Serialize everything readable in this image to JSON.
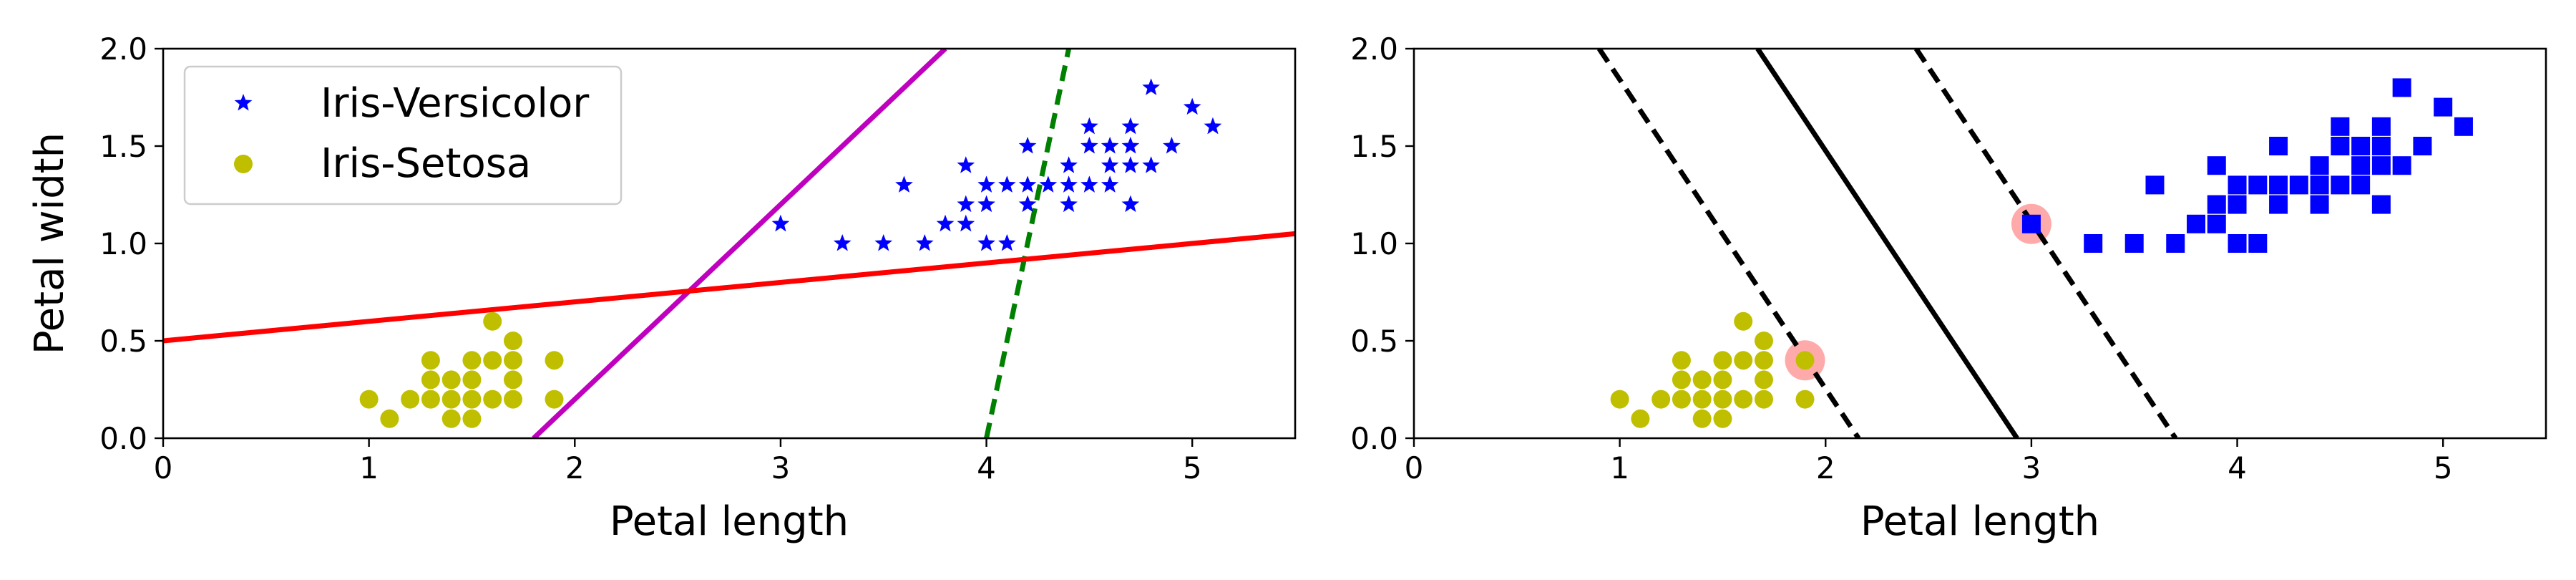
{
  "chart_data": [
    {
      "type": "scatter",
      "panel": "left",
      "title": "",
      "xlabel": "",
      "ylabel": "Petal width",
      "xlim": [
        0,
        5.5
      ],
      "ylim": [
        0,
        2.0
      ],
      "xticks": [
        "0",
        "1",
        "2",
        "3",
        "4",
        "5"
      ],
      "yticks": [
        "0.0",
        "0.5",
        "1.0",
        "1.5",
        "2.0"
      ],
      "grid": false,
      "legend_position": "top-left",
      "series": [
        {
          "name": "Iris-Versicolor",
          "marker": "star",
          "color": "#0000ff",
          "points": [
            [
              3.0,
              1.1
            ],
            [
              3.3,
              1.0
            ],
            [
              3.5,
              1.0
            ],
            [
              3.6,
              1.3
            ],
            [
              3.7,
              1.0
            ],
            [
              3.8,
              1.1
            ],
            [
              3.9,
              1.1
            ],
            [
              3.9,
              1.2
            ],
            [
              3.9,
              1.4
            ],
            [
              4.0,
              1.0
            ],
            [
              4.0,
              1.2
            ],
            [
              4.0,
              1.3
            ],
            [
              4.1,
              1.0
            ],
            [
              4.1,
              1.3
            ],
            [
              4.2,
              1.2
            ],
            [
              4.2,
              1.3
            ],
            [
              4.2,
              1.5
            ],
            [
              4.3,
              1.3
            ],
            [
              4.4,
              1.2
            ],
            [
              4.4,
              1.3
            ],
            [
              4.4,
              1.4
            ],
            [
              4.5,
              1.3
            ],
            [
              4.5,
              1.5
            ],
            [
              4.5,
              1.6
            ],
            [
              4.6,
              1.3
            ],
            [
              4.6,
              1.4
            ],
            [
              4.6,
              1.5
            ],
            [
              4.7,
              1.2
            ],
            [
              4.7,
              1.4
            ],
            [
              4.7,
              1.5
            ],
            [
              4.7,
              1.6
            ],
            [
              4.8,
              1.4
            ],
            [
              4.8,
              1.8
            ],
            [
              4.9,
              1.5
            ],
            [
              5.0,
              1.7
            ],
            [
              5.1,
              1.6
            ]
          ]
        },
        {
          "name": "Iris-Setosa",
          "marker": "circle",
          "color": "#bfbf00",
          "points": [
            [
              1.0,
              0.2
            ],
            [
              1.1,
              0.1
            ],
            [
              1.2,
              0.2
            ],
            [
              1.3,
              0.2
            ],
            [
              1.3,
              0.3
            ],
            [
              1.3,
              0.4
            ],
            [
              1.4,
              0.1
            ],
            [
              1.4,
              0.2
            ],
            [
              1.4,
              0.3
            ],
            [
              1.5,
              0.1
            ],
            [
              1.5,
              0.2
            ],
            [
              1.5,
              0.3
            ],
            [
              1.5,
              0.4
            ],
            [
              1.6,
              0.2
            ],
            [
              1.6,
              0.4
            ],
            [
              1.6,
              0.6
            ],
            [
              1.7,
              0.2
            ],
            [
              1.7,
              0.3
            ],
            [
              1.7,
              0.4
            ],
            [
              1.7,
              0.5
            ],
            [
              1.9,
              0.2
            ],
            [
              1.9,
              0.4
            ]
          ]
        }
      ],
      "lines": [
        {
          "style": "dashed",
          "color": "#008000",
          "x": [
            4.0,
            4.4
          ],
          "y": [
            0.0,
            2.0
          ]
        },
        {
          "style": "solid",
          "color": "#bf00bf",
          "x": [
            1.8,
            3.8
          ],
          "y": [
            0.0,
            2.0
          ]
        },
        {
          "style": "solid",
          "color": "#ff0000",
          "x": [
            0.0,
            5.5
          ],
          "y": [
            0.5,
            1.05
          ]
        }
      ]
    },
    {
      "type": "scatter",
      "panel": "right",
      "title": "",
      "xlabel": "Petal length",
      "ylabel": "",
      "xlim": [
        0,
        5.5
      ],
      "ylim": [
        0,
        2.0
      ],
      "xticks": [
        "0",
        "1",
        "2",
        "3",
        "4",
        "5"
      ],
      "yticks": [
        "0.0",
        "0.5",
        "1.0",
        "1.5",
        "2.0"
      ],
      "grid": false,
      "series": [
        {
          "marker": "square",
          "color": "#0000ff",
          "points": [
            [
              3.0,
              1.1
            ],
            [
              3.3,
              1.0
            ],
            [
              3.5,
              1.0
            ],
            [
              3.6,
              1.3
            ],
            [
              3.7,
              1.0
            ],
            [
              3.8,
              1.1
            ],
            [
              3.9,
              1.1
            ],
            [
              3.9,
              1.2
            ],
            [
              3.9,
              1.4
            ],
            [
              4.0,
              1.0
            ],
            [
              4.0,
              1.2
            ],
            [
              4.0,
              1.3
            ],
            [
              4.1,
              1.0
            ],
            [
              4.1,
              1.3
            ],
            [
              4.2,
              1.2
            ],
            [
              4.2,
              1.3
            ],
            [
              4.2,
              1.5
            ],
            [
              4.3,
              1.3
            ],
            [
              4.4,
              1.2
            ],
            [
              4.4,
              1.3
            ],
            [
              4.4,
              1.4
            ],
            [
              4.5,
              1.3
            ],
            [
              4.5,
              1.5
            ],
            [
              4.5,
              1.6
            ],
            [
              4.6,
              1.3
            ],
            [
              4.6,
              1.4
            ],
            [
              4.6,
              1.5
            ],
            [
              4.7,
              1.2
            ],
            [
              4.7,
              1.4
            ],
            [
              4.7,
              1.5
            ],
            [
              4.7,
              1.6
            ],
            [
              4.8,
              1.4
            ],
            [
              4.8,
              1.8
            ],
            [
              4.9,
              1.5
            ],
            [
              5.0,
              1.7
            ],
            [
              5.1,
              1.6
            ]
          ]
        },
        {
          "marker": "circle",
          "color": "#bfbf00",
          "points": [
            [
              1.0,
              0.2
            ],
            [
              1.1,
              0.1
            ],
            [
              1.2,
              0.2
            ],
            [
              1.3,
              0.2
            ],
            [
              1.3,
              0.3
            ],
            [
              1.3,
              0.4
            ],
            [
              1.4,
              0.1
            ],
            [
              1.4,
              0.2
            ],
            [
              1.4,
              0.3
            ],
            [
              1.5,
              0.1
            ],
            [
              1.5,
              0.2
            ],
            [
              1.5,
              0.3
            ],
            [
              1.5,
              0.4
            ],
            [
              1.6,
              0.2
            ],
            [
              1.6,
              0.4
            ],
            [
              1.6,
              0.6
            ],
            [
              1.7,
              0.2
            ],
            [
              1.7,
              0.3
            ],
            [
              1.7,
              0.4
            ],
            [
              1.7,
              0.5
            ],
            [
              1.9,
              0.2
            ],
            [
              1.9,
              0.4
            ]
          ]
        }
      ],
      "support_vectors": {
        "color": "#ffaaaa",
        "points": [
          [
            1.9,
            0.4
          ],
          [
            3.0,
            1.1
          ]
        ]
      },
      "lines": [
        {
          "style": "solid",
          "color": "#000000",
          "x": [
            1.67,
            2.93
          ],
          "y": [
            2.0,
            0.0
          ]
        },
        {
          "style": "dashed",
          "color": "#000000",
          "x": [
            0.9,
            2.16
          ],
          "y": [
            2.0,
            0.0
          ]
        },
        {
          "style": "dashed",
          "color": "#000000",
          "x": [
            2.44,
            3.7
          ],
          "y": [
            2.0,
            0.0
          ]
        }
      ]
    }
  ],
  "shared_xlabel_left": "Petal length"
}
